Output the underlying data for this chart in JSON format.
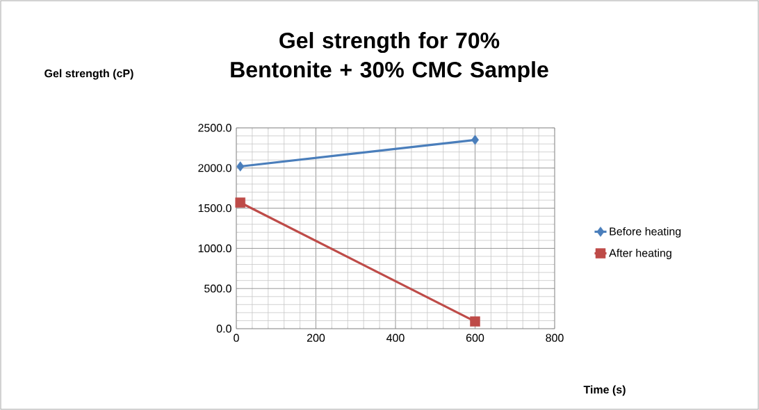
{
  "chart_data": {
    "type": "line",
    "title": "Gel strength for 70% Bentonite + 30% CMC Sample",
    "xlabel": "Time (s)",
    "annotations": [
      "Gel strength (cP)"
    ],
    "x": [
      10,
      600
    ],
    "series": [
      {
        "name": "Before heating",
        "color": "#4a7ebb",
        "marker": "diamond",
        "values": [
          2020,
          2350
        ]
      },
      {
        "name": "After heating",
        "color": "#be4b48",
        "marker": "square",
        "values": [
          1570,
          90
        ]
      }
    ],
    "xlim": [
      0,
      800
    ],
    "xticks": [
      0,
      200,
      400,
      600,
      800
    ],
    "ylim": [
      0,
      2500
    ],
    "yticks": [
      {
        "value": 0,
        "label": "0.0"
      },
      {
        "value": 500,
        "label": "500.0"
      },
      {
        "value": 1000,
        "label": "1000.0"
      },
      {
        "value": 1500,
        "label": "1500.0"
      },
      {
        "value": 2000,
        "label": "2000.0"
      },
      {
        "value": 2500,
        "label": "2500.0"
      }
    ],
    "grid": true,
    "legend": "right"
  }
}
